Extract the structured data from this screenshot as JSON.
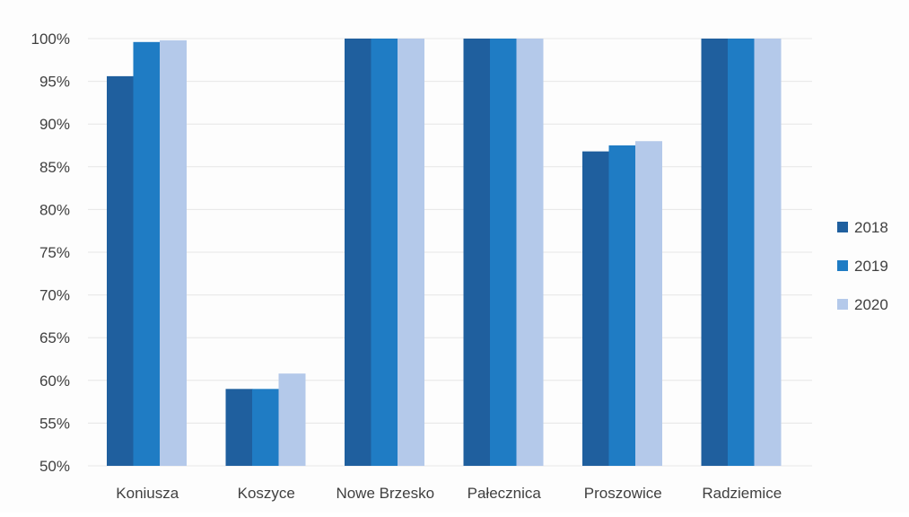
{
  "chart_data": {
    "type": "bar",
    "categories": [
      "Koniusza",
      "Koszyce",
      "Nowe Brzesko",
      "Pałecznica",
      "Proszowice",
      "Radziemice"
    ],
    "series": [
      {
        "name": "2018",
        "values": [
          95.6,
          59.0,
          100,
          100,
          86.8,
          100
        ]
      },
      {
        "name": "2019",
        "values": [
          99.6,
          59.0,
          100,
          100,
          87.5,
          100
        ]
      },
      {
        "name": "2020",
        "values": [
          99.8,
          60.8,
          100,
          100,
          88.0,
          100
        ]
      }
    ],
    "ylim": [
      50,
      100
    ],
    "y_ticks": [
      "50%",
      "55%",
      "60%",
      "65%",
      "70%",
      "75%",
      "80%",
      "85%",
      "90%",
      "95%",
      "100%"
    ],
    "grid": true,
    "legend_position": "right",
    "colors": {
      "2018": "#1f5f9e",
      "2019": "#1f7cc4",
      "2020": "#b4c9ea",
      "grid": "#e6e6e6"
    }
  }
}
